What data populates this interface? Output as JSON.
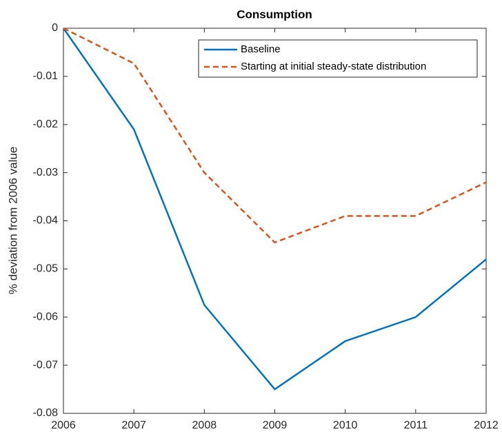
{
  "chart_data": {
    "type": "line",
    "title": "Consumption",
    "y_label": "% deviation from 2006 value",
    "x": [
      2006,
      2007,
      2008,
      2009,
      2010,
      2011,
      2012
    ],
    "series": [
      {
        "name": "Baseline",
        "color": "#0072bd",
        "line_style": "solid",
        "values": [
          0,
          -0.021,
          -0.0575,
          -0.075,
          -0.065,
          -0.06,
          -0.048
        ]
      },
      {
        "name": "Starting at initial steady-state distribution",
        "color": "#d95319",
        "line_style": "dashed",
        "values": [
          0,
          -0.0073,
          -0.03,
          -0.0445,
          -0.039,
          -0.039,
          -0.032
        ]
      }
    ],
    "xlim": [
      2006,
      2012
    ],
    "xticks": [
      2006,
      2007,
      2008,
      2009,
      2010,
      2011,
      2012
    ],
    "ylim": [
      -0.08,
      0
    ],
    "yticks": [
      0,
      -0.01,
      -0.02,
      -0.03,
      -0.04,
      -0.05,
      -0.06,
      -0.07,
      -0.08
    ],
    "grid": false,
    "legend": "northeast"
  }
}
